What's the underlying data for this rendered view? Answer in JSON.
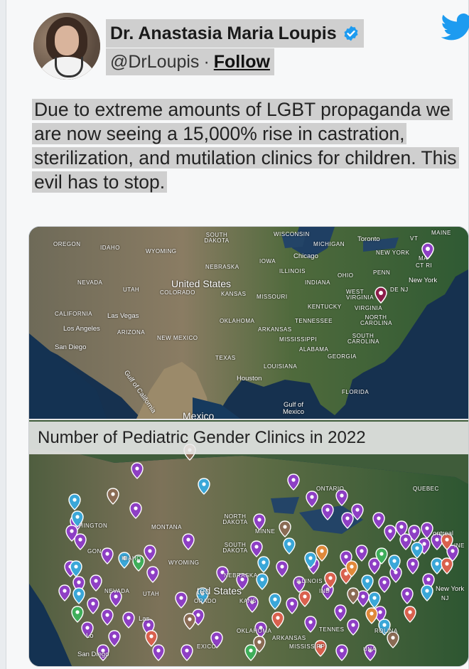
{
  "user": {
    "display_name": "Dr. Anastasia Maria Loupis",
    "handle": "@DrLoupis",
    "separator": "·",
    "follow_label": "Follow",
    "avatar_icon": "profile-photo",
    "verified_icon": "verified-badge-icon",
    "brand_icon": "twitter-bird-icon",
    "brand_color": "#1d9bf0"
  },
  "tweet": {
    "text": "Due to extreme amounts of LGBT propaganda we are now seeing a 15,000% rise in castration, sterilization, and mutilation clinics for children. This evil has to stop."
  },
  "media": {
    "top_map_labels": {
      "oregon": "OREGON",
      "idaho": "IDAHO",
      "wyoming": "WYOMING",
      "south_dakota": "SOUTH DAKOTA",
      "wisconsin": "WISCONSIN",
      "michigan": "MICHIGAN",
      "toronto": "Toronto",
      "maine": "MAINE",
      "vt": "VT",
      "new_york_state": "NEW YORK",
      "ma": "MA",
      "ct_ri": "CT RI",
      "nebraska": "NEBRASKA",
      "iowa": "IOWA",
      "chicago": "Chicago",
      "illinois": "ILLINOIS",
      "ohio": "OHIO",
      "penn": "PENN",
      "indiana": "INDIANA",
      "new_york_city": "New York",
      "nevada": "NEVADA",
      "utah": "UTAH",
      "united_states": "United States",
      "colorado": "COLORADO",
      "kansas": "KANSAS",
      "missouri": "MISSOURI",
      "west_virginia": "WEST VIRGINIA",
      "de_nj": "DE NJ",
      "kentucky": "KENTUCKY",
      "virginia": "VIRGINIA",
      "california": "CALIFORNIA",
      "las_vegas": "Las Vegas",
      "los_angeles": "Los Angeles",
      "arizona": "ARIZONA",
      "new_mexico": "NEW MEXICO",
      "oklahoma": "OKLAHOMA",
      "arkansas": "ARKANSAS",
      "tennessee": "TENNESSEE",
      "north_carolina": "NORTH CAROLINA",
      "san_diego": "San Diego",
      "mississippi": "MISSISSIPPI",
      "alabama": "ALABAMA",
      "georgia": "GEORGIA",
      "south_carolina": "SOUTH CAROLINA",
      "texas": "TEXAS",
      "louisiana": "LOUISIANA",
      "gulf_california": "Gulf of California",
      "houston": "Houston",
      "florida": "FLORIDA",
      "gulf_mexico": "Gulf of Mexico",
      "mexico": "Mexico"
    },
    "banner_title": "Number of Pediatric Gender Clinics in 2022",
    "bottom_map_labels": {
      "ontario": "ONTARIO",
      "quebec": "QUEBEC",
      "hington": "HINGTON",
      "montana": "MONTANA",
      "north_dakota": "NORTH DAKOTA",
      "minne": "MINNE",
      "montreal": "ontreal",
      "south_dakota": "SOUTH DAKOTA",
      "gon": "GON",
      "idaho": "IDAHO",
      "wyoming": "WYOMING",
      "nebraska": "NEBRASKA",
      "ine": "INE",
      "illinois": "ILLINOIS",
      "new_york": "New York",
      "nevada": "NEVADA",
      "utah": "UTAH",
      "united_states": "ted States",
      "orado": "ORADO",
      "kans": "KANS",
      "ind": "IND",
      "nj": "NJ",
      "las": "Las",
      "tennes": "TENNES",
      "la": "Lo",
      "oklahoma": "OKLAHOMA",
      "arkansas": "ARKANSAS",
      "carolina": "ROLINA",
      "exico": "EXICO",
      "mississippi": "MISSISSIPP",
      "san_diego": "San Diego",
      "una": "UNA"
    },
    "pin_colors": [
      "#8e3fc4",
      "#3aa7d8",
      "#d9614e",
      "#8a6b54",
      "#e0893a",
      "#3fae5a"
    ]
  }
}
